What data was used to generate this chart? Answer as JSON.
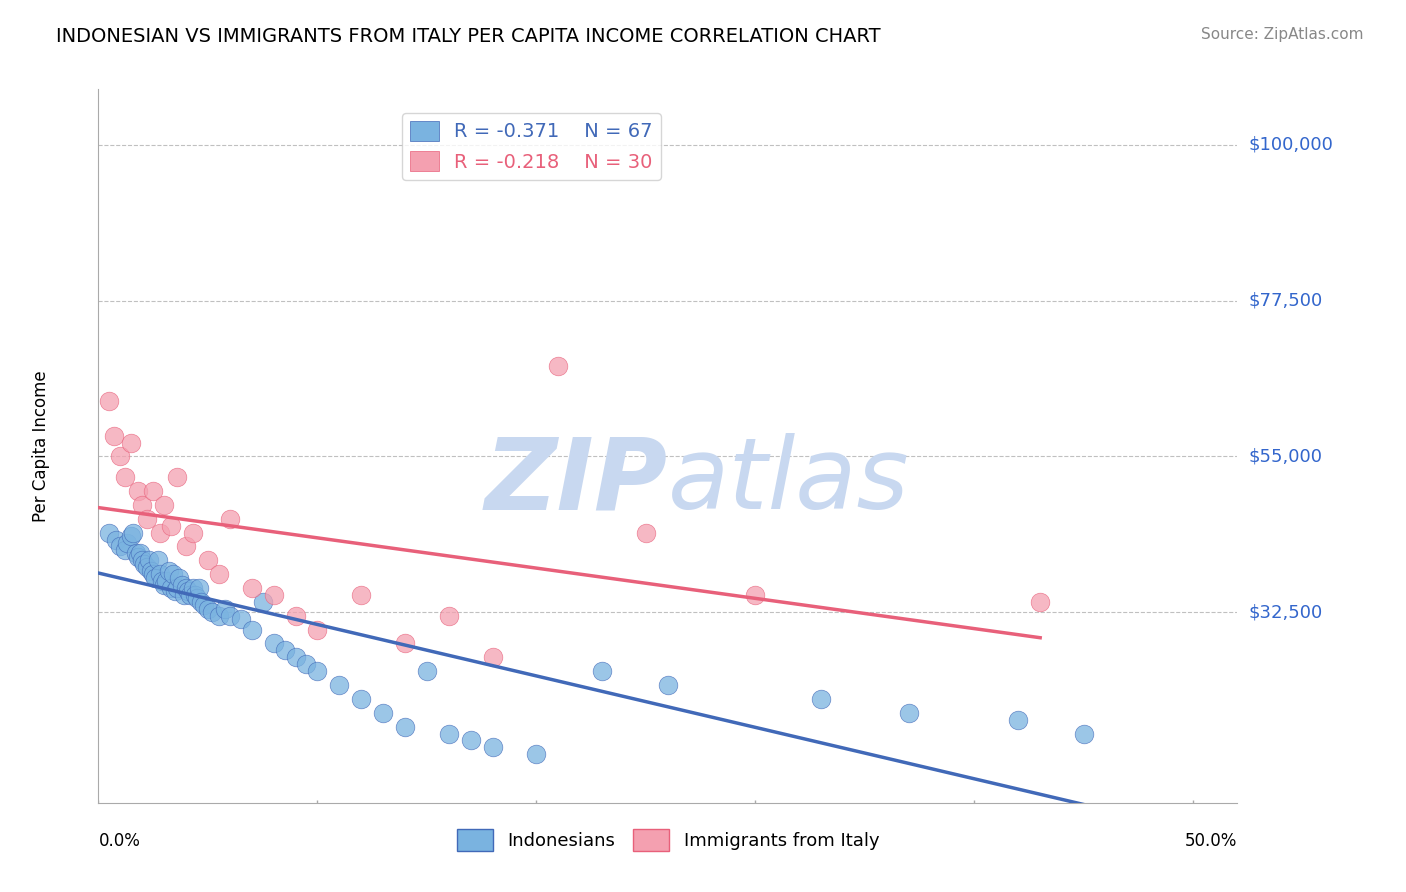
{
  "title": "INDONESIAN VS IMMIGRANTS FROM ITALY PER CAPITA INCOME CORRELATION CHART",
  "source": "Source: ZipAtlas.com",
  "ylabel": "Per Capita Income",
  "yticks": [
    10000,
    32500,
    55000,
    77500,
    100000
  ],
  "ytick_labels": [
    "",
    "$32,500",
    "$55,000",
    "$77,500",
    "$100,000"
  ],
  "xlim": [
    0.0,
    0.52
  ],
  "ylim": [
    5000,
    108000
  ],
  "blue_R": -0.371,
  "blue_N": 67,
  "pink_R": -0.218,
  "pink_N": 30,
  "legend_label_blue": "Indonesians",
  "legend_label_pink": "Immigrants from Italy",
  "blue_color": "#7ab3e0",
  "pink_color": "#f4a0b0",
  "trend_blue": "#4169b8",
  "trend_pink": "#e8607a",
  "blue_scatter_x": [
    0.005,
    0.008,
    0.01,
    0.012,
    0.013,
    0.015,
    0.016,
    0.017,
    0.018,
    0.019,
    0.02,
    0.021,
    0.022,
    0.023,
    0.024,
    0.025,
    0.026,
    0.027,
    0.028,
    0.029,
    0.03,
    0.031,
    0.032,
    0.033,
    0.034,
    0.035,
    0.036,
    0.037,
    0.038,
    0.039,
    0.04,
    0.041,
    0.042,
    0.043,
    0.044,
    0.045,
    0.046,
    0.047,
    0.048,
    0.05,
    0.052,
    0.055,
    0.058,
    0.06,
    0.065,
    0.07,
    0.075,
    0.08,
    0.085,
    0.09,
    0.095,
    0.1,
    0.11,
    0.12,
    0.13,
    0.14,
    0.15,
    0.16,
    0.17,
    0.18,
    0.2,
    0.23,
    0.26,
    0.33,
    0.37,
    0.42,
    0.45
  ],
  "blue_scatter_y": [
    44000,
    43000,
    42000,
    41500,
    42500,
    43500,
    44000,
    41000,
    40500,
    41000,
    40000,
    39500,
    39000,
    40000,
    38500,
    38000,
    37500,
    40000,
    38000,
    37000,
    36500,
    37000,
    38500,
    36000,
    38000,
    35500,
    36000,
    37500,
    36500,
    35000,
    36000,
    35500,
    35000,
    36000,
    35000,
    34500,
    36000,
    34000,
    33500,
    33000,
    32500,
    32000,
    33000,
    32000,
    31500,
    30000,
    34000,
    28000,
    27000,
    26000,
    25000,
    24000,
    22000,
    20000,
    18000,
    16000,
    24000,
    15000,
    14000,
    13000,
    12000,
    24000,
    22000,
    20000,
    18000,
    17000,
    15000
  ],
  "pink_scatter_x": [
    0.005,
    0.007,
    0.01,
    0.012,
    0.015,
    0.018,
    0.02,
    0.022,
    0.025,
    0.028,
    0.03,
    0.033,
    0.036,
    0.04,
    0.043,
    0.05,
    0.055,
    0.06,
    0.07,
    0.08,
    0.09,
    0.1,
    0.12,
    0.14,
    0.16,
    0.18,
    0.21,
    0.25,
    0.3,
    0.43
  ],
  "pink_scatter_y": [
    63000,
    58000,
    55000,
    52000,
    57000,
    50000,
    48000,
    46000,
    50000,
    44000,
    48000,
    45000,
    52000,
    42000,
    44000,
    40000,
    38000,
    46000,
    36000,
    35000,
    32000,
    30000,
    35000,
    28000,
    32000,
    26000,
    68000,
    44000,
    35000,
    34000
  ],
  "watermark_color": "#c8d8f0",
  "background_color": "#ffffff",
  "grid_color": "#c0c0c0"
}
